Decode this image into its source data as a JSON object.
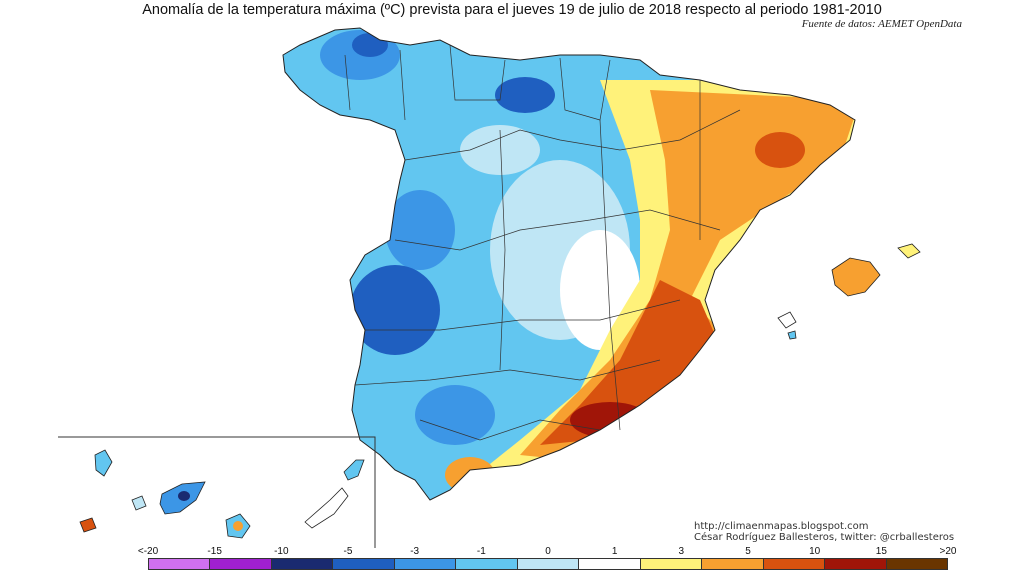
{
  "title": "Anomalía de la temperatura máxima (ºC) prevista para el jueves 19 de julio de 2018 respecto al periodo 1981-2010",
  "source": "Fuente de datos: AEMET OpenData",
  "credits": {
    "blog": "http://climaenmapas.blogspot.com",
    "author": "César Rodríguez Ballesteros, twitter: @crballesteros"
  },
  "legend": {
    "labels": [
      "<-20",
      "-15",
      "-10",
      "-5",
      "-3",
      "-1",
      "0",
      "1",
      "3",
      "5",
      "10",
      "15",
      ">20"
    ],
    "colors": [
      "#d070f0",
      "#a020d0",
      "#1a2a70",
      "#1f5fc0",
      "#3c96e6",
      "#62c6f0",
      "#bfe6f5",
      "#ffffff",
      "#fff27a",
      "#f7a030",
      "#d8520f",
      "#a01508",
      "#6a3500"
    ]
  }
}
